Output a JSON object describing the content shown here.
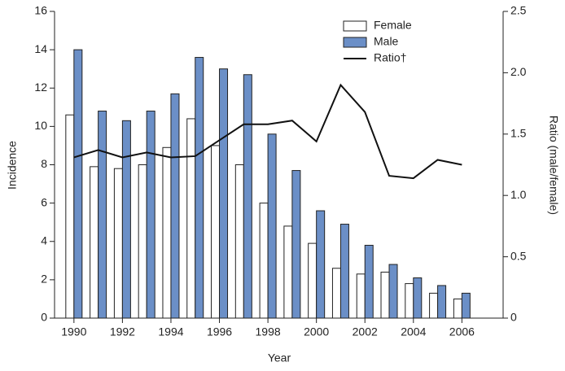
{
  "chart_data": {
    "type": "bar-line",
    "x_label": "Year",
    "y_label": "Incidence",
    "y2_label": "Ratio (male/female)",
    "x": [
      1990,
      1991,
      1992,
      1993,
      1994,
      1995,
      1996,
      1997,
      1998,
      1999,
      2000,
      2001,
      2002,
      2003,
      2004,
      2005,
      2006
    ],
    "xlim": [
      1989.2,
      2007.7
    ],
    "xticks": [
      1990,
      1992,
      1994,
      1996,
      1998,
      2000,
      2002,
      2004,
      2006
    ],
    "ylim": [
      0,
      16
    ],
    "yticks": [
      0,
      2,
      4,
      6,
      8,
      10,
      12,
      14,
      16
    ],
    "y2lim": [
      0,
      2.5
    ],
    "y2ticks": [
      0,
      0.5,
      {
        "value": 1,
        "label": "1.0"
      },
      1.5,
      {
        "value": 2,
        "label": "2.0"
      },
      2.5
    ],
    "series": [
      {
        "name": "Female",
        "kind": "bar",
        "color": "#ffffff",
        "values": [
          10.6,
          7.9,
          7.8,
          8.0,
          8.9,
          10.4,
          9.0,
          8.0,
          6.0,
          4.8,
          3.9,
          2.6,
          2.3,
          2.4,
          1.8,
          1.3,
          1.0
        ]
      },
      {
        "name": "Male",
        "kind": "bar",
        "color": "#6b8fc7",
        "values": [
          14.0,
          10.8,
          10.3,
          10.8,
          11.7,
          13.6,
          13.0,
          12.7,
          9.6,
          7.7,
          5.6,
          4.9,
          3.8,
          2.8,
          2.1,
          1.7,
          1.3
        ]
      },
      {
        "name": "Ratio†",
        "kind": "line",
        "axis": "y2",
        "color": "#111111",
        "values": [
          1.31,
          1.37,
          1.31,
          1.35,
          1.31,
          1.32,
          1.45,
          1.58,
          1.58,
          1.61,
          1.44,
          1.9,
          1.68,
          1.16,
          1.14,
          1.29,
          1.25
        ]
      }
    ]
  }
}
